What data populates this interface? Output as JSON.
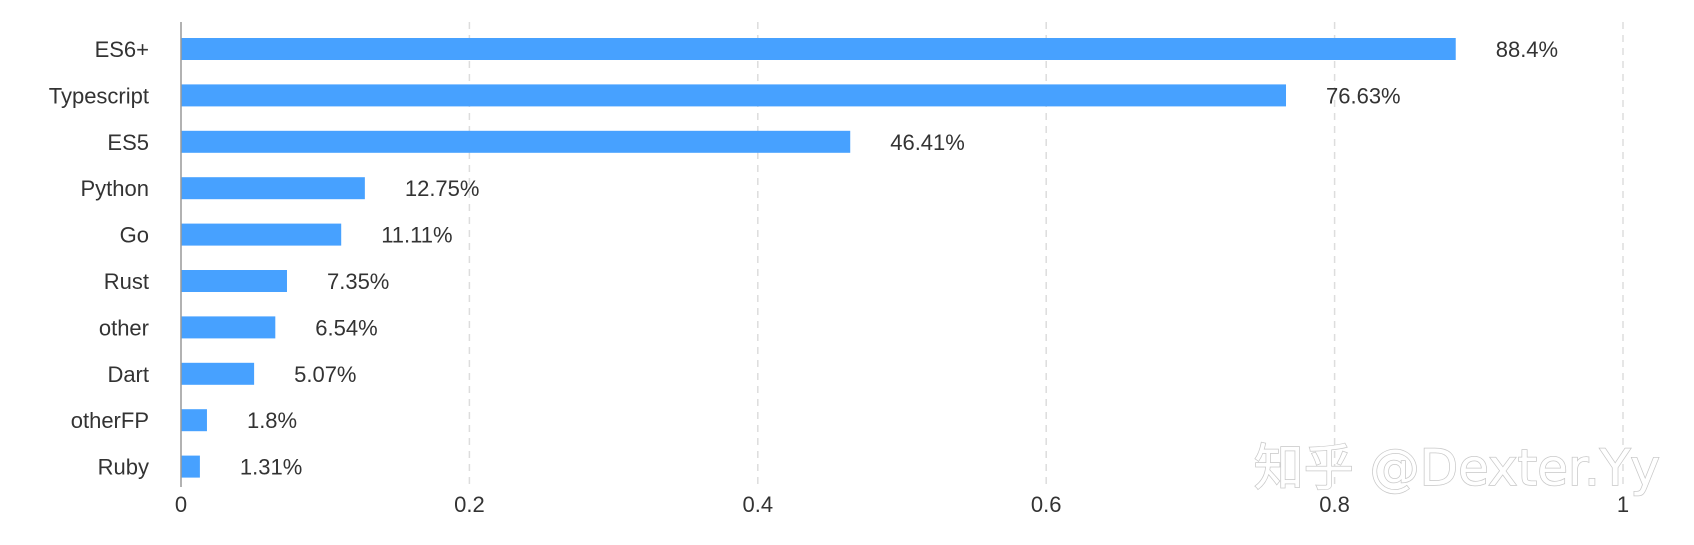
{
  "chart_data": {
    "type": "bar",
    "orientation": "horizontal",
    "categories": [
      "ES6+",
      "Typescript",
      "ES5",
      "Python",
      "Go",
      "Rust",
      "other",
      "Dart",
      "otherFP",
      "Ruby"
    ],
    "values": [
      0.884,
      0.7663,
      0.4641,
      0.1275,
      0.1111,
      0.0735,
      0.0654,
      0.0507,
      0.018,
      0.0131
    ],
    "value_labels": [
      "88.4%",
      "76.63%",
      "46.41%",
      "12.75%",
      "11.11%",
      "7.35%",
      "6.54%",
      "5.07%",
      "1.8%",
      "1.31%"
    ],
    "xticks": [
      0,
      0.2,
      0.4,
      0.6,
      0.8,
      1
    ],
    "xtick_labels": [
      "0",
      "0.2",
      "0.4",
      "0.6",
      "0.8",
      "1"
    ],
    "xlim": [
      0,
      1
    ],
    "grid": true,
    "bar_color": "#47a1ff",
    "title": "",
    "xlabel": "",
    "ylabel": ""
  },
  "watermark": "知乎 @Dexter.Yy"
}
